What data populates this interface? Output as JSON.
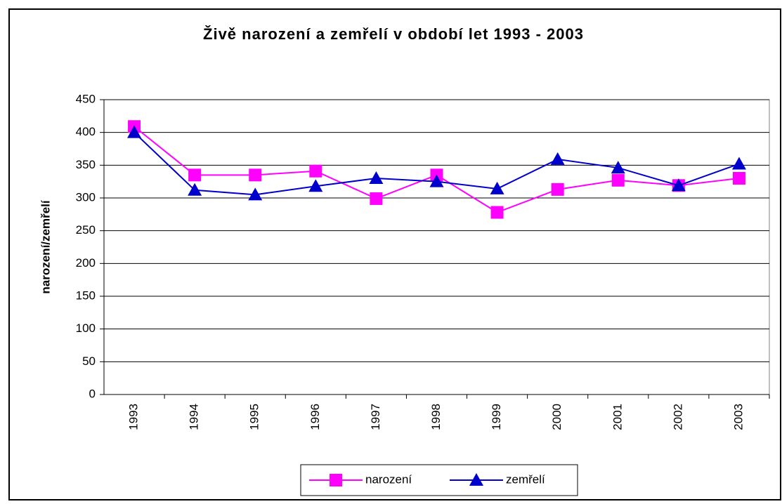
{
  "chart_data": {
    "type": "line",
    "title": "Živě narození a zemřelí v období let 1993 - 2003",
    "y_label": "narození/zemřelí",
    "categories": [
      "1993",
      "1994",
      "1995",
      "1996",
      "1997",
      "1998",
      "1999",
      "2000",
      "2001",
      "2002",
      "2003"
    ],
    "series": [
      {
        "name": "narození",
        "color": "#ff00ff",
        "marker": "square",
        "values": [
          409,
          335,
          335,
          341,
          299,
          335,
          278,
          313,
          327,
          319,
          330
        ]
      },
      {
        "name": "zemřelí",
        "color": "#0000cc",
        "marker": "triangle",
        "values": [
          400,
          312,
          305,
          318,
          330,
          325,
          314,
          359,
          346,
          319,
          352
        ]
      }
    ],
    "ylim": [
      0,
      450
    ],
    "yticks": [
      0,
      50,
      100,
      150,
      200,
      250,
      300,
      350,
      400,
      450
    ],
    "grid": true,
    "legend": "bottom"
  }
}
